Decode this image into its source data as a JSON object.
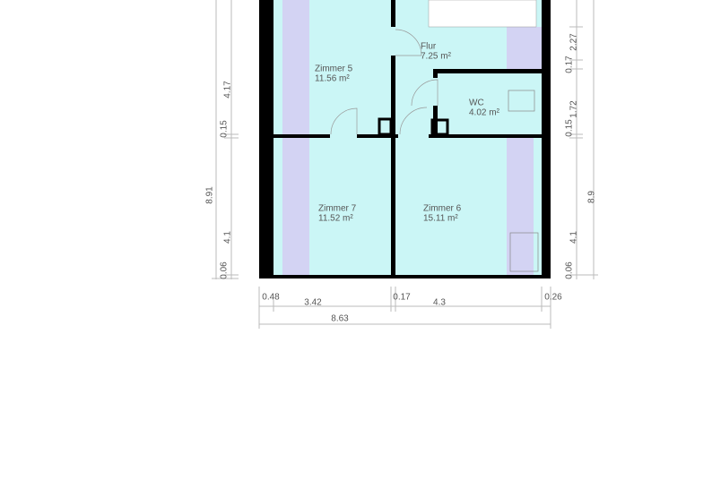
{
  "rooms": [
    {
      "name": "Zimmer 5",
      "area": "11.56 m²"
    },
    {
      "name": "Flur",
      "area": "7.25 m²"
    },
    {
      "name": "WC",
      "area": "4.02 m²"
    },
    {
      "name": "Zimmer 7",
      "area": "11.52 m²"
    },
    {
      "name": "Zimmer 6",
      "area": "15.11 m²"
    }
  ],
  "dimensions": {
    "left": [
      "4.17",
      "0.15",
      "4.1",
      "0.06"
    ],
    "left_total": "8.91",
    "right": [
      "2.27",
      "0.17",
      "1.72",
      "0.15",
      "4.1",
      "0.06"
    ],
    "right_total": "8.9",
    "bottom": [
      "0.48",
      "3.42",
      "0.17",
      "4.3",
      "0.26"
    ],
    "bottom_total": "8.63"
  }
}
